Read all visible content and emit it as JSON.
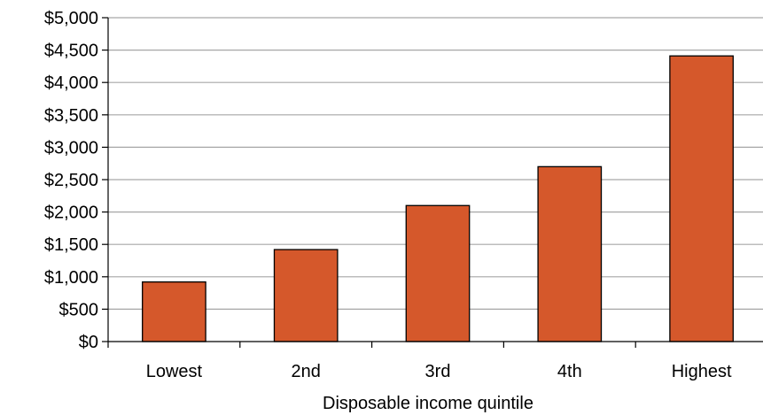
{
  "chart_data": {
    "type": "bar",
    "title": "",
    "xlabel": "Disposable income quintile",
    "ylabel": "",
    "categories": [
      "Lowest",
      "2nd",
      "3rd",
      "4th",
      "Highest"
    ],
    "values": [
      920,
      1420,
      2100,
      2700,
      4410
    ],
    "ylim": [
      0,
      5000
    ],
    "yticks": [
      0,
      500,
      1000,
      1500,
      2000,
      2500,
      3000,
      3500,
      4000,
      4500,
      5000
    ],
    "ytick_labels": [
      "$0",
      "$500",
      "$1,000",
      "$1,500",
      "$2,000",
      "$2,500",
      "$3,000",
      "$3,500",
      "$4,000",
      "$4,500",
      "$5,000"
    ],
    "grid": true,
    "legend": "none",
    "colors": {
      "bar_fill": "#d5582b",
      "bar_stroke": "#000000",
      "grid": "#a6a6a6",
      "axis": "#000000"
    }
  }
}
